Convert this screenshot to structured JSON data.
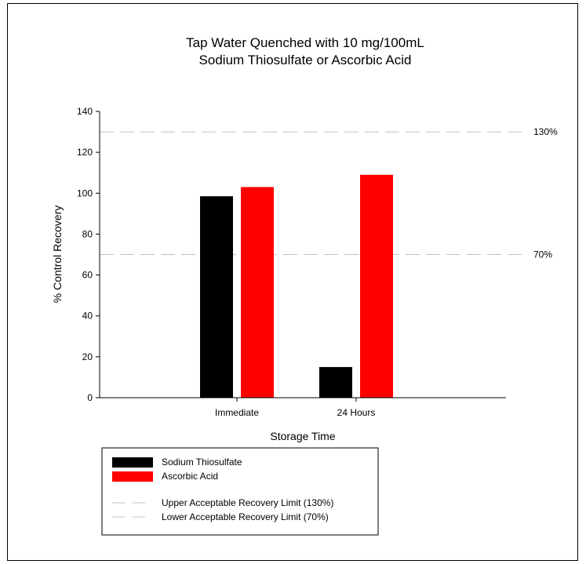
{
  "chart_data": {
    "type": "bar",
    "title_lines": [
      "Tap Water Quenched with 10 mg/100mL",
      "Sodium Thiosulfate or Ascorbic Acid"
    ],
    "xlabel": "Storage Time",
    "ylabel": "% Control Recovery",
    "categories": [
      "Immediate",
      "24 Hours"
    ],
    "series": [
      {
        "name": "Sodium Thiosulfate",
        "values": [
          98.5,
          15
        ],
        "color": "#000000"
      },
      {
        "name": "Ascorbic Acid",
        "values": [
          103,
          109
        ],
        "color": "#ff0000"
      }
    ],
    "ylim": [
      0,
      140
    ],
    "yticks": [
      0,
      20,
      40,
      60,
      80,
      100,
      120,
      140
    ],
    "grid": false,
    "reference_lines": [
      {
        "value": 130,
        "label": "130%",
        "legend": "Upper Acceptable Recovery Limit (130%)",
        "color": "#c0c0c0"
      },
      {
        "value": 70,
        "label": "70%",
        "legend": "Lower Acceptable Recovery Limit (70%)",
        "color": "#c0c0c0"
      }
    ],
    "legend_position": "bottom-left"
  }
}
